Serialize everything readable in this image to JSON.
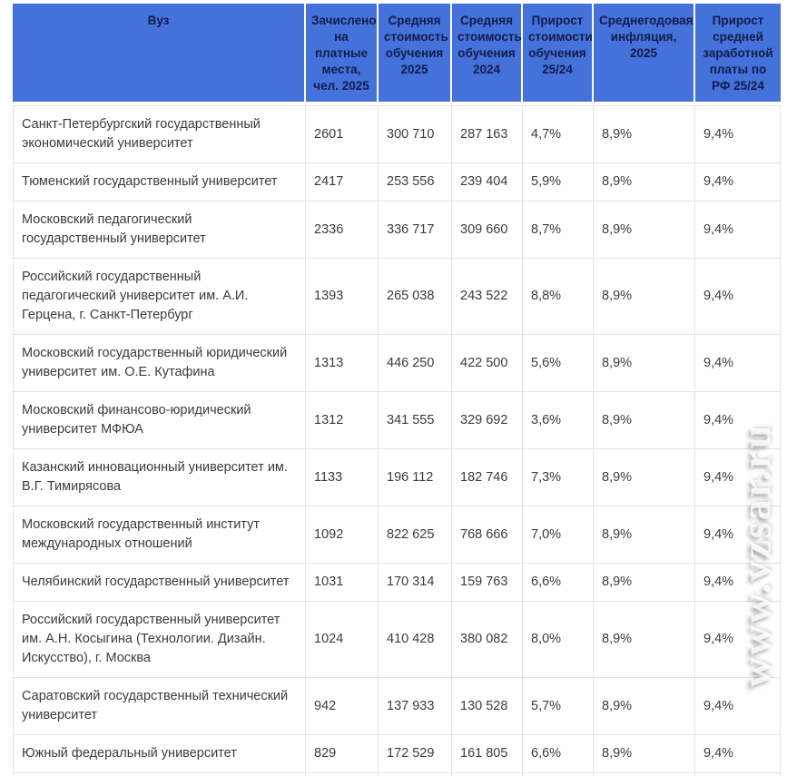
{
  "colors": {
    "header_bg": "#4471da",
    "header_text": "#131c4a",
    "body_text": "#3b3b3b",
    "row_border": "#e3e3e3"
  },
  "watermark": {
    "text": "www.vzsar.ru"
  },
  "chart_data": {
    "type": "table",
    "columns": [
      "Вуз",
      "Зачислено на платные места, чел. 2025",
      "Средняя стоимость обучения 2025",
      "Средняя стоимость обучения 2024",
      "Прирост стоимости обучения 25/24",
      "Среднегодовая инфляция, 2025",
      "Прирост средней заработной платы по РФ 25/24"
    ],
    "rows": [
      [
        "Санкт-Петербургский государственный экономический университет",
        "2601",
        "300 710",
        "287 163",
        "4,7%",
        "8,9%",
        "9,4%"
      ],
      [
        "Тюменский государственный университет",
        "2417",
        "253 556",
        "239 404",
        "5,9%",
        "8,9%",
        "9,4%"
      ],
      [
        "Московский педагогический государственный университет",
        "2336",
        "336 717",
        "309 660",
        "8,7%",
        "8,9%",
        "9,4%"
      ],
      [
        "Российский государственный педагогический университет им. А.И. Герцена, г. Санкт-Петербург",
        "1393",
        "265 038",
        "243 522",
        "8,8%",
        "8,9%",
        "9,4%"
      ],
      [
        "Московский государственный юридический университет им. О.Е. Кутафина",
        "1313",
        "446 250",
        "422 500",
        "5,6%",
        "8,9%",
        "9,4%"
      ],
      [
        "Московский финансово-юридический университет МФЮА",
        "1312",
        "341 555",
        "329 692",
        "3,6%",
        "8,9%",
        "9,4%"
      ],
      [
        "Казанский инновационный университет им. В.Г. Тимирясова",
        "1133",
        "196 112",
        "182 746",
        "7,3%",
        "8,9%",
        "9,4%"
      ],
      [
        "Московский государственный институт международных отношений",
        "1092",
        "822 625",
        "768 666",
        "7,0%",
        "8,9%",
        "9,4%"
      ],
      [
        "Челябинский государственный университет",
        "1031",
        "170 314",
        "159 763",
        "6,6%",
        "8,9%",
        "9,4%"
      ],
      [
        "Российский государственный университет им. А.Н. Косыгина (Технологии. Дизайн. Искусство), г. Москва",
        "1024",
        "410 428",
        "380 082",
        "8,0%",
        "8,9%",
        "9,4%"
      ],
      [
        "Саратовский государственный технический университет",
        "942",
        "137 933",
        "130 528",
        "5,7%",
        "8,9%",
        "9,4%"
      ],
      [
        "Южный федеральный университет",
        "829",
        "172 529",
        "161 805",
        "6,6%",
        "8,9%",
        "9,4%"
      ]
    ]
  }
}
